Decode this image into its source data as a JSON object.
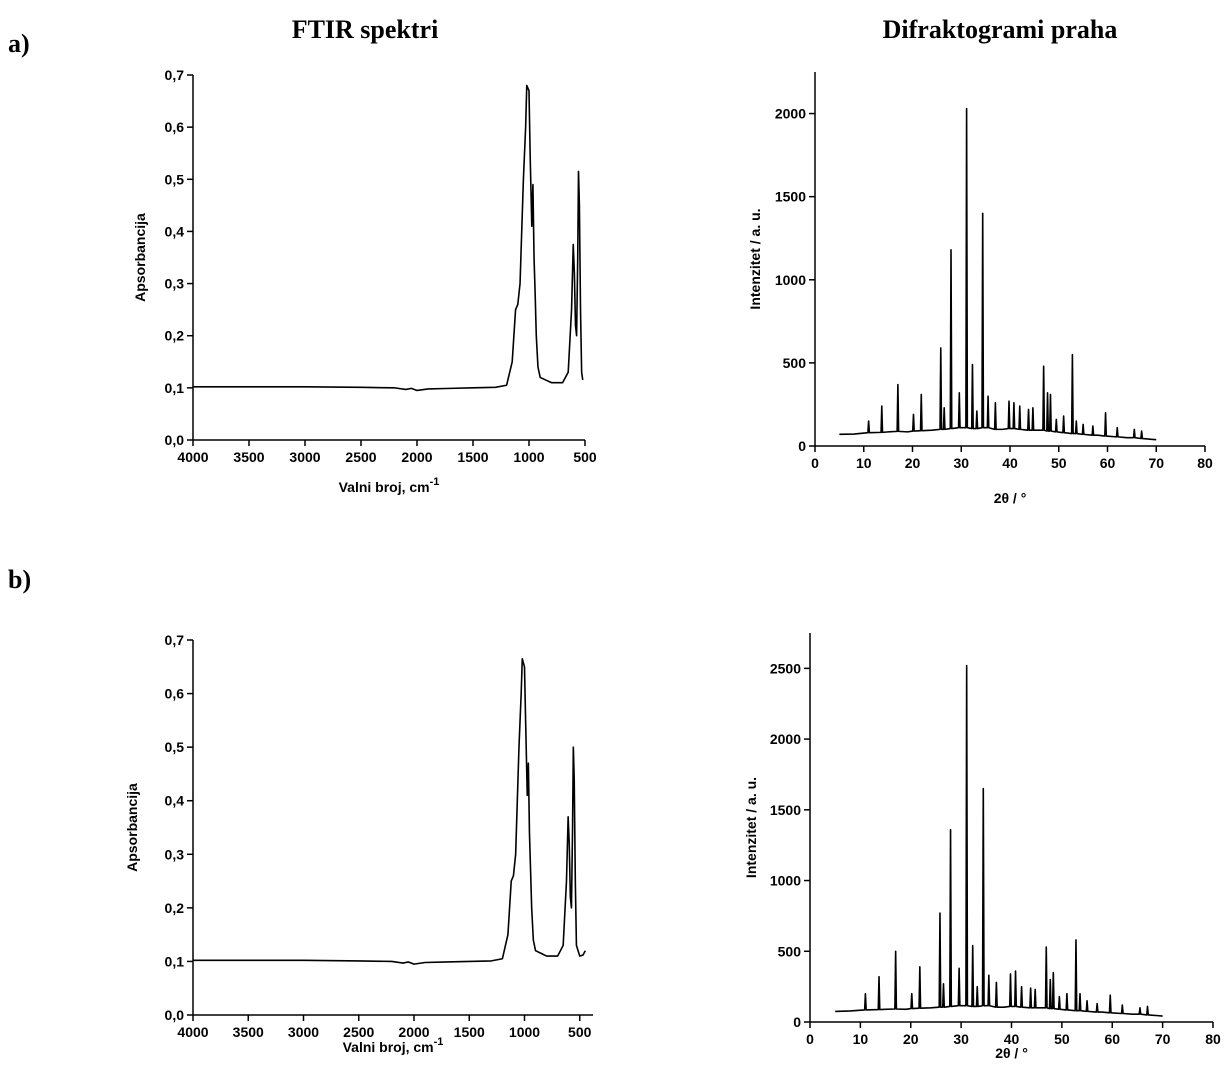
{
  "header": {
    "left": "FTIR spektri",
    "right": "Difraktogrami praha"
  },
  "panels": [
    "a)",
    "b)"
  ],
  "chart_data": [
    {
      "type": "line",
      "xlabel": "Valni broj, cm",
      "xlabel_sup": "-1",
      "ylabel": "Apsorbancija",
      "color": "#000000",
      "xlim": [
        4000,
        500
      ],
      "ylim": [
        0,
        0.7
      ],
      "xticks": [
        4000,
        3500,
        3000,
        2500,
        2000,
        1500,
        1000,
        500
      ],
      "yticks": [
        {
          "value": 0,
          "label": "0,0"
        },
        {
          "value": 0.1,
          "label": "0,1"
        },
        {
          "value": 0.2,
          "label": "0,2"
        },
        {
          "value": 0.3,
          "label": "0,3"
        },
        {
          "value": 0.4,
          "label": "0,4"
        },
        {
          "value": 0.5,
          "label": "0,5"
        },
        {
          "value": 0.6,
          "label": "0,6"
        },
        {
          "value": 0.7,
          "label": "0,7"
        }
      ],
      "x": [
        4000,
        3500,
        3000,
        2500,
        2200,
        2100,
        2050,
        2000,
        1900,
        1700,
        1500,
        1300,
        1200,
        1150,
        1120,
        1100,
        1080,
        1050,
        1030,
        1020,
        1000,
        990,
        975,
        965,
        955,
        945,
        935,
        920,
        900,
        850,
        800,
        700,
        650,
        620,
        605,
        595,
        585,
        575,
        565,
        558,
        550,
        540,
        530,
        520
      ],
      "values": [
        0.102,
        0.102,
        0.102,
        0.101,
        0.1,
        0.097,
        0.099,
        0.095,
        0.098,
        0.099,
        0.1,
        0.101,
        0.105,
        0.15,
        0.25,
        0.26,
        0.3,
        0.5,
        0.6,
        0.68,
        0.67,
        0.55,
        0.41,
        0.49,
        0.35,
        0.28,
        0.2,
        0.14,
        0.12,
        0.115,
        0.11,
        0.11,
        0.13,
        0.25,
        0.375,
        0.32,
        0.22,
        0.2,
        0.35,
        0.515,
        0.45,
        0.25,
        0.13,
        0.115
      ]
    },
    {
      "type": "line",
      "xlabel": "2θ / °",
      "ylabel": "Intenzitet / a. u.",
      "color": "#000000",
      "xlim": [
        0,
        80
      ],
      "ylim": [
        0,
        2250
      ],
      "xticks": [
        0,
        10,
        20,
        30,
        40,
        50,
        60,
        70,
        80
      ],
      "yticks": [
        0,
        500,
        1000,
        1500,
        2000
      ],
      "x": [
        5,
        8,
        10.85,
        11,
        11.15,
        13.55,
        13.7,
        13.85,
        15,
        16.85,
        17,
        17.15,
        19,
        20.05,
        20.2,
        20.35,
        21.65,
        21.8,
        21.95,
        24,
        25.65,
        25.8,
        25.95,
        26.35,
        26.5,
        26.65,
        27.75,
        27.9,
        28.05,
        29.45,
        29.6,
        29.75,
        30.95,
        31.1,
        31.25,
        32.15,
        32.3,
        32.45,
        33.05,
        33.2,
        33.35,
        34.25,
        34.4,
        34.55,
        35.35,
        35.5,
        35.65,
        36.85,
        37,
        37.15,
        38.5,
        39.65,
        39.8,
        39.95,
        40.65,
        40.8,
        40.95,
        41.85,
        42,
        42.15,
        43.65,
        43.8,
        43.95,
        44.55,
        44.7,
        44.85,
        46.75,
        46.9,
        47.05,
        47.55,
        47.7,
        47.85,
        48.15,
        48.3,
        48.45,
        49.35,
        49.5,
        49.65,
        50.85,
        51,
        51.15,
        52.65,
        52.8,
        52.95,
        53.45,
        53.6,
        53.75,
        54.85,
        55,
        55.15,
        56.85,
        57,
        57.15,
        58,
        59.45,
        59.6,
        59.75,
        61.85,
        62,
        62.15,
        64,
        65.35,
        65.5,
        65.65,
        66.85,
        67,
        67.15,
        69,
        70
      ],
      "values": [
        70,
        72,
        80,
        150,
        80,
        82,
        240,
        82,
        85,
        88,
        370,
        88,
        85,
        90,
        190,
        90,
        92,
        310,
        92,
        95,
        100,
        590,
        100,
        100,
        230,
        100,
        105,
        1180,
        105,
        110,
        320,
        110,
        110,
        2030,
        110,
        105,
        490,
        105,
        105,
        210,
        105,
        110,
        1400,
        110,
        110,
        300,
        110,
        100,
        260,
        100,
        100,
        105,
        270,
        105,
        105,
        260,
        105,
        100,
        240,
        100,
        95,
        220,
        95,
        95,
        230,
        95,
        95,
        480,
        95,
        90,
        320,
        90,
        90,
        310,
        90,
        85,
        160,
        85,
        80,
        180,
        80,
        75,
        550,
        75,
        75,
        150,
        75,
        70,
        130,
        70,
        65,
        120,
        65,
        65,
        60,
        200,
        60,
        55,
        110,
        55,
        50,
        50,
        100,
        50,
        45,
        90,
        45,
        40,
        38
      ]
    },
    {
      "type": "line",
      "xlabel": "Valni broj, cm",
      "xlabel_sup": "-1",
      "ylabel": "Apsorbancija",
      "color": "#000000",
      "xlim": [
        4000,
        380
      ],
      "ylim": [
        0,
        0.7
      ],
      "xticks": [
        4000,
        3500,
        3000,
        2500,
        2000,
        1500,
        1000,
        500
      ],
      "yticks": [
        {
          "value": 0,
          "label": "0,0"
        },
        {
          "value": 0.1,
          "label": "0,1"
        },
        {
          "value": 0.2,
          "label": "0,2"
        },
        {
          "value": 0.3,
          "label": "0,3"
        },
        {
          "value": 0.4,
          "label": "0,4"
        },
        {
          "value": 0.5,
          "label": "0,5"
        },
        {
          "value": 0.6,
          "label": "0,6"
        },
        {
          "value": 0.7,
          "label": "0,7"
        }
      ],
      "x": [
        4000,
        3500,
        3000,
        2500,
        2200,
        2100,
        2050,
        2000,
        1900,
        1700,
        1500,
        1300,
        1200,
        1150,
        1120,
        1100,
        1080,
        1050,
        1030,
        1020,
        1000,
        990,
        975,
        965,
        955,
        945,
        935,
        920,
        900,
        850,
        800,
        700,
        650,
        620,
        605,
        595,
        585,
        575,
        565,
        558,
        550,
        540,
        530,
        500,
        470,
        450
      ],
      "values": [
        0.102,
        0.102,
        0.102,
        0.101,
        0.1,
        0.097,
        0.099,
        0.095,
        0.098,
        0.099,
        0.1,
        0.101,
        0.105,
        0.15,
        0.25,
        0.26,
        0.3,
        0.5,
        0.6,
        0.665,
        0.65,
        0.55,
        0.41,
        0.47,
        0.34,
        0.27,
        0.2,
        0.14,
        0.12,
        0.115,
        0.11,
        0.11,
        0.13,
        0.25,
        0.37,
        0.32,
        0.22,
        0.2,
        0.35,
        0.5,
        0.44,
        0.25,
        0.13,
        0.11,
        0.112,
        0.12
      ]
    },
    {
      "type": "line",
      "xlabel": "2θ / °",
      "ylabel": "Intenzitet / a. u.",
      "color": "#000000",
      "xlim": [
        0,
        80
      ],
      "ylim": [
        0,
        2750
      ],
      "xticks": [
        0,
        10,
        20,
        30,
        40,
        50,
        60,
        70,
        80
      ],
      "yticks": [
        0,
        500,
        1000,
        1500,
        2000,
        2500
      ],
      "x": [
        5,
        8,
        10.85,
        11,
        11.15,
        13.55,
        13.7,
        13.85,
        15,
        16.85,
        17,
        17.15,
        19,
        20.05,
        20.2,
        20.35,
        21.65,
        21.8,
        21.95,
        24,
        25.65,
        25.8,
        25.95,
        26.35,
        26.5,
        26.65,
        27.75,
        27.9,
        28.05,
        29.45,
        29.6,
        29.75,
        30.95,
        31.1,
        31.25,
        32.15,
        32.3,
        32.45,
        33.05,
        33.2,
        33.35,
        34.25,
        34.4,
        34.55,
        35.35,
        35.5,
        35.65,
        36.85,
        37,
        37.15,
        38.5,
        39.65,
        39.8,
        39.95,
        40.65,
        40.8,
        40.95,
        41.85,
        42,
        42.15,
        43.65,
        43.8,
        43.95,
        44.55,
        44.7,
        44.85,
        46.75,
        46.9,
        47.05,
        47.55,
        47.7,
        47.85,
        48.15,
        48.3,
        48.45,
        49.35,
        49.5,
        49.65,
        50.85,
        51,
        51.15,
        52.65,
        52.8,
        52.95,
        53.45,
        53.6,
        53.75,
        54.85,
        55,
        55.15,
        56.85,
        57,
        57.15,
        58,
        59.45,
        59.6,
        59.75,
        61.85,
        62,
        62.15,
        64,
        65.35,
        65.5,
        65.65,
        66.85,
        67,
        67.15,
        69,
        70
      ],
      "values": [
        75,
        78,
        85,
        200,
        85,
        88,
        320,
        88,
        90,
        92,
        500,
        92,
        90,
        95,
        200,
        95,
        98,
        390,
        98,
        100,
        105,
        770,
        105,
        105,
        270,
        105,
        110,
        1360,
        110,
        115,
        380,
        115,
        115,
        2520,
        115,
        110,
        540,
        110,
        110,
        250,
        110,
        115,
        1650,
        115,
        115,
        330,
        115,
        105,
        280,
        105,
        105,
        110,
        340,
        110,
        110,
        360,
        110,
        105,
        250,
        105,
        100,
        240,
        100,
        100,
        230,
        100,
        100,
        530,
        100,
        95,
        300,
        95,
        95,
        350,
        95,
        90,
        180,
        90,
        85,
        200,
        85,
        80,
        580,
        80,
        80,
        200,
        80,
        75,
        150,
        75,
        70,
        130,
        70,
        70,
        65,
        190,
        65,
        60,
        120,
        60,
        55,
        55,
        100,
        55,
        50,
        110,
        50,
        45,
        42
      ]
    }
  ]
}
